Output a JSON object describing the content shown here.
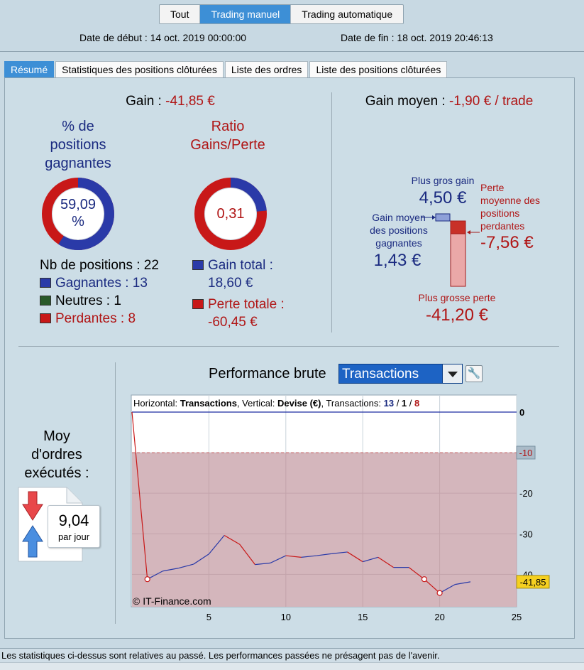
{
  "modes": {
    "tout": "Tout",
    "manuel": "Trading manuel",
    "auto": "Trading automatique"
  },
  "dates": {
    "debut": "Date de début : 14 oct. 2019 00:00:00",
    "fin": "Date de fin : 18 oct. 2019 20:46:13"
  },
  "tabs": [
    "Résumé",
    "Statistiques des positions clôturées",
    "Liste des ordres",
    "Liste des positions clôturées"
  ],
  "gain": {
    "label": "Gain : ",
    "value": "-41,85 €"
  },
  "pct": {
    "title1": "% de",
    "title2": "positions",
    "title3": "gagnantes",
    "value1": "59,09",
    "value2": "%",
    "fraction": 0.5909
  },
  "ratio": {
    "title1": "Ratio",
    "title2": "Gains/Perte",
    "value": "0,31"
  },
  "positions": {
    "total": "Nb de positions : 22",
    "gagnantes": "Gagnantes : 13",
    "neutres": "Neutres : 1",
    "perdantes": "Perdantes : 8"
  },
  "totals": {
    "gain_label": "Gain total :",
    "gain_value": "18,60 €",
    "perte_label": "Perte totale :",
    "perte_value": "-60,45 €"
  },
  "gain_moyen": {
    "label": "Gain moyen : ",
    "value": "-1,90 € / trade"
  },
  "extremes": {
    "plus_gros_gain_label": "Plus gros gain",
    "plus_gros_gain": "4,50 €",
    "perte_moyenne_l1": "Perte",
    "perte_moyenne_l2": "moyenne des",
    "perte_moyenne_l3": "positions",
    "perte_moyenne_l4": "perdantes",
    "perte_moyenne": "-7,56 €",
    "gain_moyen_l1": "Gain moyen",
    "gain_moyen_l2": "des positions",
    "gain_moyen_l3": "gagnantes",
    "gain_moyen_value": "1,43 €",
    "plus_grosse_perte_label": "Plus grosse perte",
    "plus_grosse_perte": "-41,20 €"
  },
  "orders": {
    "l1": "Moy",
    "l2": "d'ordres",
    "l3": "exécutés :",
    "value": "9,04",
    "unit": "par jour"
  },
  "performance": {
    "title": "Performance brute",
    "select": "Transactions"
  },
  "chart_info": {
    "h_label": "Horizontal: ",
    "h_value": "Transactions",
    "v_label": ", Vertical: ",
    "v_value": "Devise (€)",
    "t_label": ", Transactions: ",
    "t_win": "13",
    "sep": " / ",
    "t_neutral": "1",
    "t_loss": "8"
  },
  "copyright": "© IT-Finance.com",
  "colors": {
    "win": "#2a3aa8",
    "loss": "#c81818",
    "neutral": "#2a5a2a",
    "fill": "#d4b6bc"
  },
  "chart_data": {
    "type": "line",
    "x": [
      0,
      1,
      2,
      3,
      4,
      5,
      6,
      7,
      8,
      9,
      10,
      11,
      12,
      13,
      14,
      15,
      16,
      17,
      18,
      19,
      20,
      21,
      22
    ],
    "values": [
      0,
      -41.2,
      -39.2,
      -38.5,
      -37.5,
      -35.0,
      -30.4,
      -32.6,
      -37.6,
      -37.2,
      -35.4,
      -35.8,
      -35.4,
      -34.9,
      -34.5,
      -36.9,
      -35.8,
      -38.3,
      -38.3,
      -41.2,
      -44.6,
      -42.5,
      -41.85
    ],
    "x_ticks": [
      "5",
      "10",
      "15",
      "20",
      "25"
    ],
    "y_ticks": [
      "0",
      "-10",
      "-20",
      "-30",
      "-40"
    ],
    "avg_loss_line": -10,
    "last_value": "-41,85",
    "avg_loss_label": "-10",
    "xlim": [
      0,
      25
    ],
    "ylim": [
      -48,
      0
    ]
  },
  "footer": "Les statistiques ci-dessus sont relatives au passé. Les performances passées ne présagent pas de l'avenir."
}
